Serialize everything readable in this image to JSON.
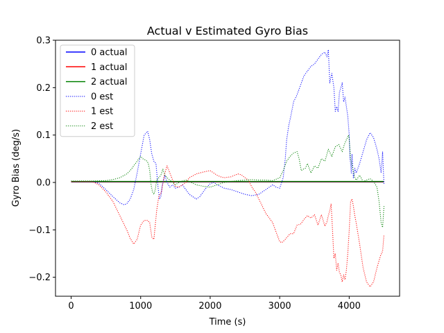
{
  "chart_data": {
    "type": "line",
    "title": "Actual v Estimated Gyro Bias",
    "xlabel": "Time (s)",
    "ylabel": "Gyro Bias (deg/s)",
    "xlim": [
      -225,
      4725
    ],
    "ylim": [
      -0.24,
      0.3
    ],
    "x_ticks": [
      0,
      1000,
      2000,
      3000,
      4000
    ],
    "x_tick_labels": [
      "0",
      "1000",
      "2000",
      "3000",
      "4000"
    ],
    "y_ticks": [
      -0.2,
      -0.1,
      0.0,
      0.1,
      0.2,
      0.3
    ],
    "y_tick_labels": [
      "−0.2",
      "−0.1",
      "0.0",
      "0.1",
      "0.2",
      "0.3"
    ],
    "grid": false,
    "legend_position": "top-left",
    "series": [
      {
        "name": "0 actual",
        "color": "#0000ff",
        "style": "solid",
        "x": [
          0,
          4500
        ],
        "y": [
          0.001,
          0.001
        ]
      },
      {
        "name": "1 actual",
        "color": "#ff0000",
        "style": "solid",
        "x": [
          0,
          4500
        ],
        "y": [
          0.0015,
          0.0015
        ]
      },
      {
        "name": "2 actual",
        "color": "#008000",
        "style": "solid",
        "x": [
          0,
          4500
        ],
        "y": [
          0.002,
          0.002
        ]
      },
      {
        "name": "0 est",
        "color": "#0000ff",
        "style": "dotted",
        "x": [
          0,
          300,
          400,
          500,
          600,
          700,
          760,
          800,
          850,
          900,
          950,
          1000,
          1050,
          1100,
          1130,
          1160,
          1190,
          1220,
          1250,
          1270,
          1290,
          1310,
          1330,
          1350,
          1380,
          1420,
          1460,
          1500,
          1550,
          1600,
          1650,
          1700,
          1750,
          1800,
          1850,
          1900,
          1950,
          2000,
          2050,
          2100,
          2200,
          2300,
          2400,
          2500,
          2600,
          2700,
          2800,
          2900,
          2950,
          3000,
          3050,
          3080,
          3100,
          3130,
          3160,
          3200,
          3250,
          3300,
          3350,
          3400,
          3450,
          3500,
          3550,
          3600,
          3650,
          3680,
          3700,
          3720,
          3750,
          3780,
          3800,
          3820,
          3840,
          3860,
          3880,
          3900,
          3920,
          3940,
          3960,
          3980,
          4000,
          4010,
          4020,
          4030,
          4040,
          4060,
          4080,
          4100,
          4150,
          4200,
          4250,
          4300,
          4350,
          4400,
          4430,
          4460,
          4480,
          4500
        ],
        "y": [
          0.002,
          0.002,
          -0.002,
          -0.015,
          -0.03,
          -0.043,
          -0.047,
          -0.045,
          -0.035,
          -0.015,
          0.02,
          0.06,
          0.1,
          0.108,
          0.09,
          0.06,
          0.045,
          0.04,
          -0.01,
          -0.035,
          -0.03,
          -0.005,
          0.005,
          0.015,
          0.0,
          -0.01,
          -0.005,
          -0.012,
          -0.01,
          -0.005,
          -0.015,
          -0.025,
          -0.03,
          -0.035,
          -0.03,
          -0.02,
          -0.01,
          -0.003,
          0.0,
          -0.005,
          -0.012,
          -0.015,
          -0.02,
          -0.025,
          -0.028,
          -0.025,
          -0.015,
          -0.005,
          -0.01,
          -0.012,
          0.01,
          0.05,
          0.09,
          0.12,
          0.14,
          0.17,
          0.185,
          0.205,
          0.225,
          0.235,
          0.245,
          0.25,
          0.26,
          0.27,
          0.275,
          0.265,
          0.28,
          0.21,
          0.23,
          0.2,
          0.15,
          0.16,
          0.15,
          0.19,
          0.2,
          0.21,
          0.17,
          0.18,
          0.16,
          0.14,
          0.1,
          0.05,
          0.04,
          0.02,
          0.06,
          0.01,
          0.03,
          0.02,
          0.04,
          0.065,
          0.09,
          0.105,
          0.095,
          0.07,
          0.05,
          0.02,
          0.065,
          -0.005
        ]
      },
      {
        "name": "1 est",
        "color": "#ff0000",
        "style": "dotted",
        "x": [
          0,
          300,
          400,
          500,
          600,
          700,
          800,
          850,
          900,
          950,
          1000,
          1050,
          1100,
          1130,
          1160,
          1190,
          1230,
          1260,
          1300,
          1340,
          1380,
          1420,
          1460,
          1500,
          1550,
          1600,
          1650,
          1700,
          1800,
          1900,
          2000,
          2050,
          2100,
          2150,
          2200,
          2300,
          2400,
          2450,
          2500,
          2550,
          2600,
          2650,
          2700,
          2750,
          2800,
          2900,
          2950,
          3000,
          3030,
          3080,
          3150,
          3200,
          3250,
          3300,
          3350,
          3400,
          3450,
          3500,
          3550,
          3600,
          3650,
          3680,
          3700,
          3720,
          3740,
          3760,
          3780,
          3800,
          3820,
          3840,
          3860,
          3880,
          3900,
          3920,
          3940,
          3960,
          3980,
          4000,
          4020,
          4040,
          4060,
          4080,
          4100,
          4150,
          4200,
          4250,
          4300,
          4350,
          4400,
          4450,
          4480,
          4500
        ],
        "y": [
          0.002,
          0.002,
          -0.005,
          -0.02,
          -0.04,
          -0.07,
          -0.1,
          -0.118,
          -0.13,
          -0.12,
          -0.09,
          -0.08,
          -0.08,
          -0.085,
          -0.115,
          -0.12,
          -0.06,
          -0.03,
          -0.02,
          0.015,
          0.035,
          0.02,
          0.005,
          -0.008,
          -0.01,
          -0.005,
          0.0,
          0.01,
          0.018,
          0.022,
          0.025,
          0.02,
          0.015,
          0.012,
          0.01,
          0.012,
          0.018,
          0.016,
          0.01,
          0.005,
          -0.01,
          -0.02,
          -0.035,
          -0.05,
          -0.065,
          -0.085,
          -0.105,
          -0.125,
          -0.127,
          -0.12,
          -0.108,
          -0.108,
          -0.09,
          -0.088,
          -0.078,
          -0.07,
          -0.075,
          -0.068,
          -0.09,
          -0.068,
          -0.092,
          -0.083,
          -0.07,
          -0.06,
          -0.045,
          -0.1,
          -0.16,
          -0.15,
          -0.185,
          -0.17,
          -0.19,
          -0.195,
          -0.21,
          -0.195,
          -0.205,
          -0.185,
          -0.15,
          -0.1,
          -0.04,
          -0.035,
          -0.05,
          -0.07,
          -0.085,
          -0.13,
          -0.18,
          -0.21,
          -0.22,
          -0.21,
          -0.18,
          -0.155,
          -0.145,
          -0.11
        ]
      },
      {
        "name": "2 est",
        "color": "#008000",
        "style": "dotted",
        "x": [
          0,
          300,
          500,
          600,
          700,
          800,
          850,
          900,
          950,
          1000,
          1030,
          1060,
          1090,
          1110,
          1130,
          1150,
          1170,
          1190,
          1210,
          1230,
          1260,
          1290,
          1320,
          1350,
          1380,
          1420,
          1460,
          1500,
          1550,
          1600,
          1650,
          1700,
          1800,
          1900,
          2000,
          2100,
          2200,
          2300,
          2400,
          2500,
          2600,
          2700,
          2800,
          2900,
          3000,
          3050,
          3100,
          3150,
          3200,
          3250,
          3280,
          3310,
          3340,
          3370,
          3400,
          3450,
          3500,
          3550,
          3600,
          3650,
          3700,
          3750,
          3800,
          3850,
          3900,
          3930,
          3960,
          3990,
          4000,
          4020,
          4050,
          4080,
          4100,
          4150,
          4200,
          4250,
          4300,
          4350,
          4400,
          4430,
          4460,
          4480,
          4500
        ],
        "y": [
          0.003,
          0.003,
          0.004,
          0.006,
          0.01,
          0.018,
          0.025,
          0.035,
          0.045,
          0.055,
          0.05,
          0.048,
          0.045,
          0.04,
          0.025,
          -0.005,
          -0.02,
          -0.025,
          -0.015,
          0.005,
          0.01,
          0.015,
          0.028,
          0.015,
          0.01,
          0.005,
          0.0,
          -0.005,
          0.0,
          0.003,
          0.005,
          0.002,
          -0.005,
          -0.008,
          -0.01,
          -0.005,
          0.0,
          0.002,
          0.004,
          0.005,
          0.006,
          0.005,
          0.005,
          0.004,
          0.01,
          0.025,
          0.045,
          0.055,
          0.062,
          0.065,
          0.05,
          0.025,
          0.028,
          0.03,
          0.04,
          0.02,
          0.035,
          0.03,
          0.05,
          0.045,
          0.07,
          0.055,
          0.075,
          0.08,
          0.065,
          0.08,
          0.09,
          0.1,
          0.09,
          0.05,
          0.03,
          0.01,
          0.005,
          0.015,
          0.002,
          0.005,
          0.008,
          0.002,
          -0.01,
          -0.04,
          -0.085,
          -0.095,
          -0.05
        ]
      }
    ]
  }
}
